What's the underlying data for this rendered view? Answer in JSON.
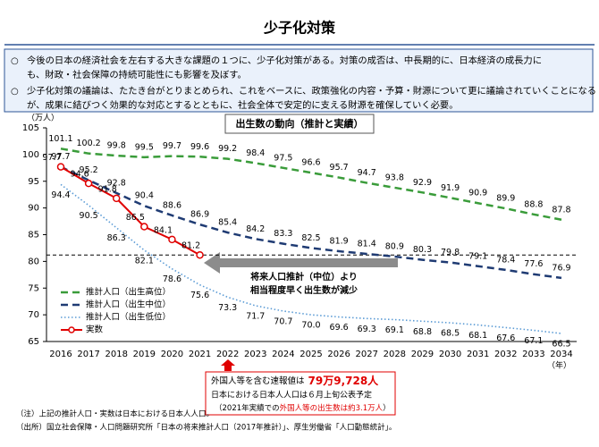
{
  "header": {
    "title": "少子化対策"
  },
  "bullets": [
    [
      "○",
      "今後の日本の経済社会を左右する大きな課題の１つに、少子化対策がある。対策の成否は、中長期的に、日本経済の成長力に",
      "も、財政・社会保障の持続可能性にも影響を及ぼす。"
    ],
    [
      "○",
      "少子化対策の議論は、たたき台がとりまとめられ、これをベースに、政策強化の内容・予算・財源について更に議論されていくことになる",
      "が、成果に結びつく効果的な対応とするとともに、社会全体で安定的に支える財源を確保していく必要。"
    ]
  ],
  "chart_data": {
    "type": "line",
    "title": "出生数の動向（推計と実績）",
    "y_unit": "（万人）",
    "x_unit": "（年）",
    "categories": [
      "2016",
      "2017",
      "2018",
      "2019",
      "2020",
      "2021",
      "2022",
      "2023",
      "2024",
      "2025",
      "2026",
      "2027",
      "2028",
      "2029",
      "2030",
      "2031",
      "2032",
      "2033",
      "2034"
    ],
    "ylim": [
      65,
      105
    ],
    "yticks": [
      65,
      70,
      75,
      80,
      85,
      90,
      95,
      100,
      105
    ],
    "reference_line": 81.2,
    "series": [
      {
        "name": "推計人口（出生高位）",
        "color": "#3a9c3a",
        "style": "dashed",
        "values": [
          101.1,
          100.2,
          99.8,
          99.5,
          99.7,
          99.6,
          99.2,
          98.4,
          97.5,
          96.6,
          95.7,
          94.7,
          93.8,
          92.9,
          91.9,
          90.9,
          89.9,
          88.8,
          87.8
        ]
      },
      {
        "name": "推計人口（出生中位）",
        "color": "#1f3b73",
        "style": "dashed",
        "values": [
          97.7,
          95.2,
          92.8,
          90.4,
          88.6,
          86.9,
          85.4,
          84.2,
          83.3,
          82.5,
          81.9,
          81.4,
          80.9,
          80.3,
          79.8,
          79.1,
          78.4,
          77.6,
          76.9
        ]
      },
      {
        "name": "推計人口（出生低位）",
        "color": "#5b9bd5",
        "style": "dotted",
        "values": [
          94.4,
          90.5,
          86.3,
          82.1,
          78.6,
          75.6,
          73.3,
          71.7,
          70.7,
          70.0,
          69.6,
          69.3,
          69.1,
          68.8,
          68.5,
          68.1,
          67.6,
          67.1,
          66.5
        ],
        "value_labels": [
          "94.4",
          "90.5",
          "86.3",
          "82.1",
          "78.6",
          "75.6",
          "73.3",
          "71.7",
          "70.7",
          "70.0",
          "69.6",
          "69.3",
          "69.1",
          "68.8",
          "68.5",
          "68.1",
          "67.6",
          "67.1",
          "66.5"
        ]
      },
      {
        "name": "実数",
        "color": "#e00000",
        "style": "solid",
        "values": [
          97.7,
          94.6,
          91.8,
          86.5,
          84.1,
          81.2,
          null,
          null,
          null,
          null,
          null,
          null,
          null,
          null,
          null,
          null,
          null,
          null,
          null
        ]
      }
    ],
    "annotations": {
      "arrow_text": [
        "将来人口推計（中位）より",
        "相当程度早く出生数が減少"
      ],
      "note": {
        "lead": "外国人等を含む速報値は",
        "value": "79万9,728人",
        "line2": "日本における日本人人口は６月上旬公表予定",
        "line3_pre": "（2021年実績での",
        "line3_red": "外国人等の出生数は約3.1万人",
        "line3_post": "）"
      }
    }
  },
  "footnotes": [
    "（注）上記の推計人口・実数は日本における日本人人口。",
    "（出所）国立社会保障・人口問題研究所「日本の将来推計人口（2017年推計）」、厚生労働省「人口動態統計」。"
  ]
}
